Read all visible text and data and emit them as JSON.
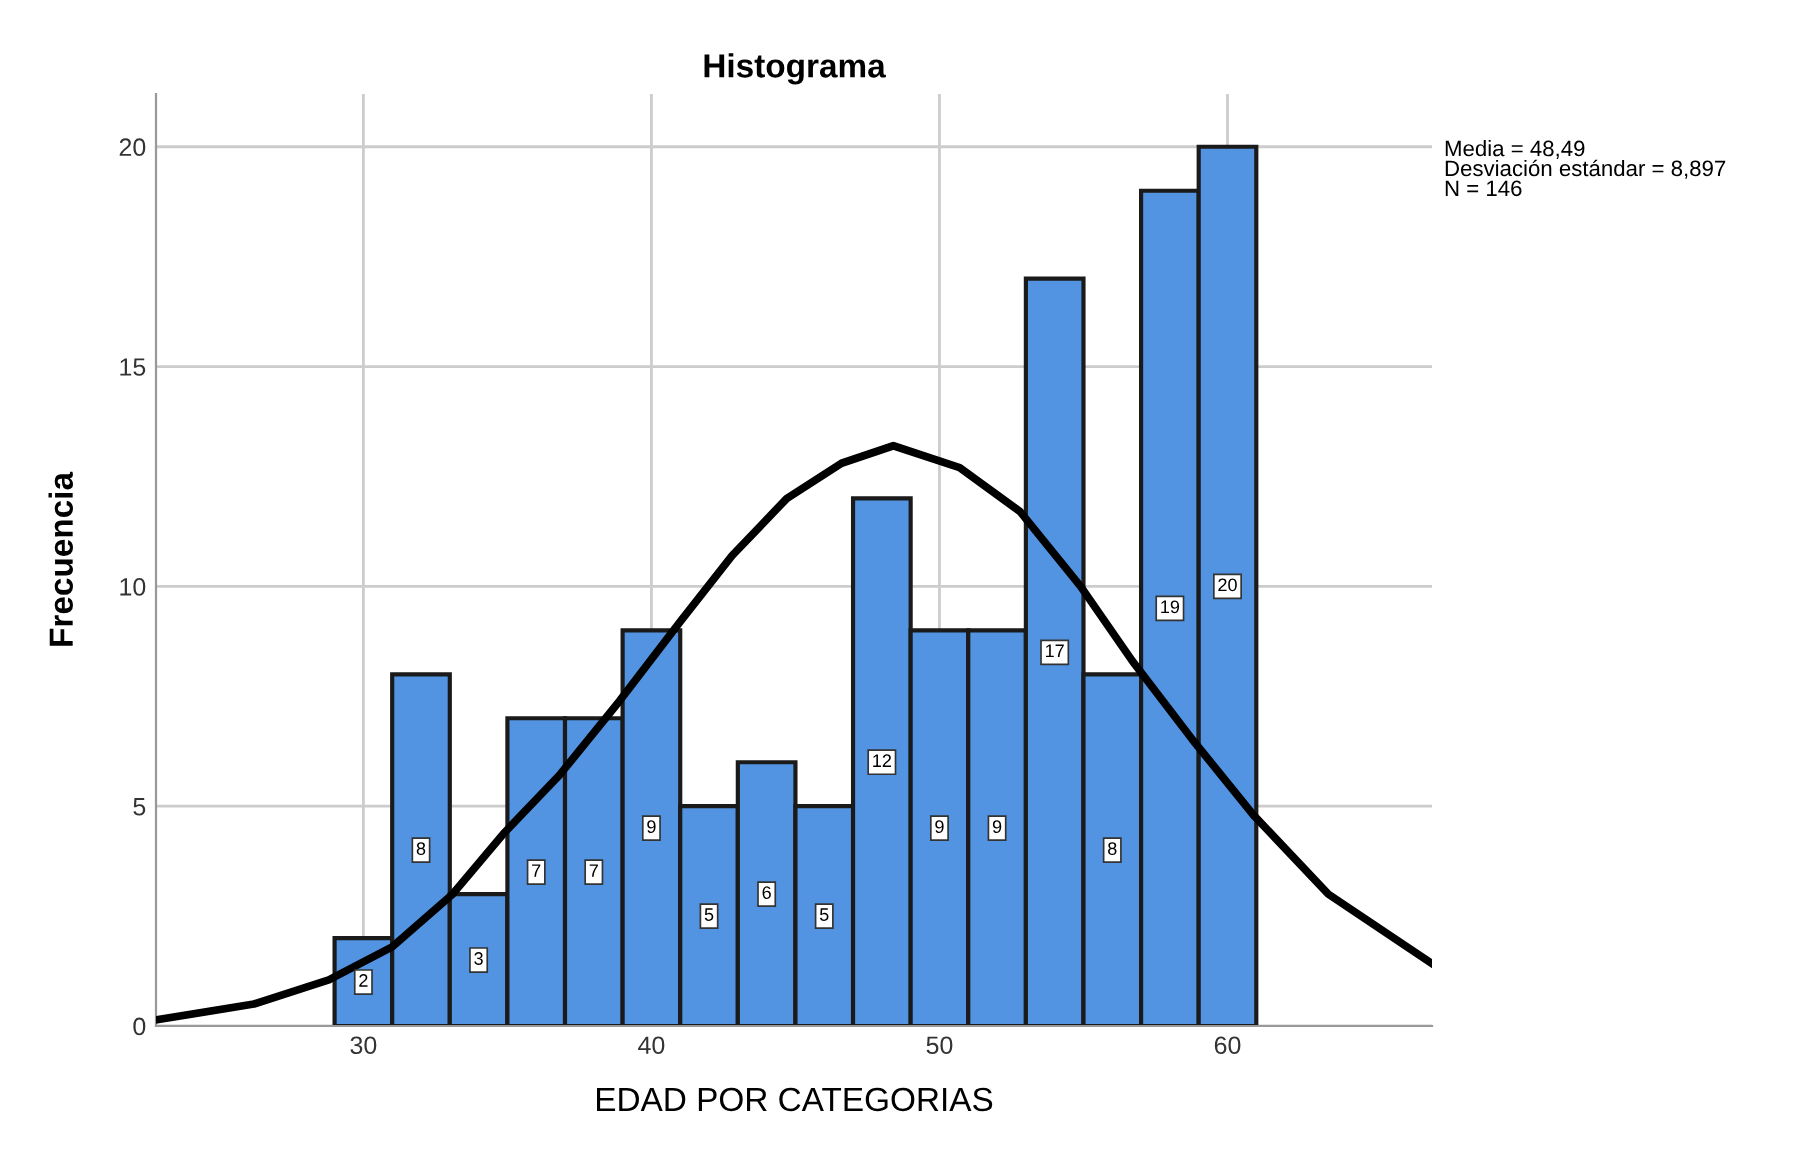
{
  "chart_data": {
    "type": "histogram",
    "title": "Histograma",
    "xlabel": "EDAD POR CATEGORIAS",
    "ylabel": "Frecuencia",
    "annotations": [
      "Media = 48,49\nDesviación estándar = 8,897\nN = 146"
    ],
    "series": [
      {
        "color": "#5294e2",
        "bins": [
          29,
          31,
          33,
          35,
          37,
          39,
          41,
          43,
          45,
          47,
          49,
          51,
          53,
          55,
          57,
          59,
          61
        ],
        "values": [
          2,
          8,
          3,
          7,
          7,
          9,
          5,
          6,
          5,
          12,
          9,
          9,
          17,
          8,
          19,
          20
        ],
        "value_labels": [
          "2",
          "8",
          "3",
          "7",
          "7",
          "9",
          "5",
          "6",
          "5",
          "12",
          "9",
          "9",
          "17",
          "8",
          "19",
          "20"
        ]
      },
      {
        "type": "line",
        "color": "#000000",
        "x": [
          22.8,
          26.2,
          28.8,
          31.0,
          33.1,
          34.9,
          36.8,
          38.9,
          41.0,
          42.8,
          44.7,
          46.6,
          48.4,
          50.7,
          52.8,
          54.9,
          56.7,
          58.8,
          60.9,
          63.5,
          67.1
        ],
        "values": [
          0.14,
          0.5,
          1.05,
          1.8,
          3.0,
          4.4,
          5.7,
          7.4,
          9.2,
          10.7,
          12.0,
          12.8,
          13.2,
          12.7,
          11.7,
          10.0,
          8.3,
          6.5,
          4.8,
          3.0,
          1.42
        ]
      }
    ],
    "xlim": [
      22.8,
      67.1
    ],
    "ylim": [
      0,
      21.2
    ],
    "xticks": [
      30,
      40,
      50,
      60
    ],
    "yticks": [
      0,
      5,
      10,
      15,
      20
    ],
    "grid": true,
    "marker": "none",
    "line_style": "solid"
  }
}
